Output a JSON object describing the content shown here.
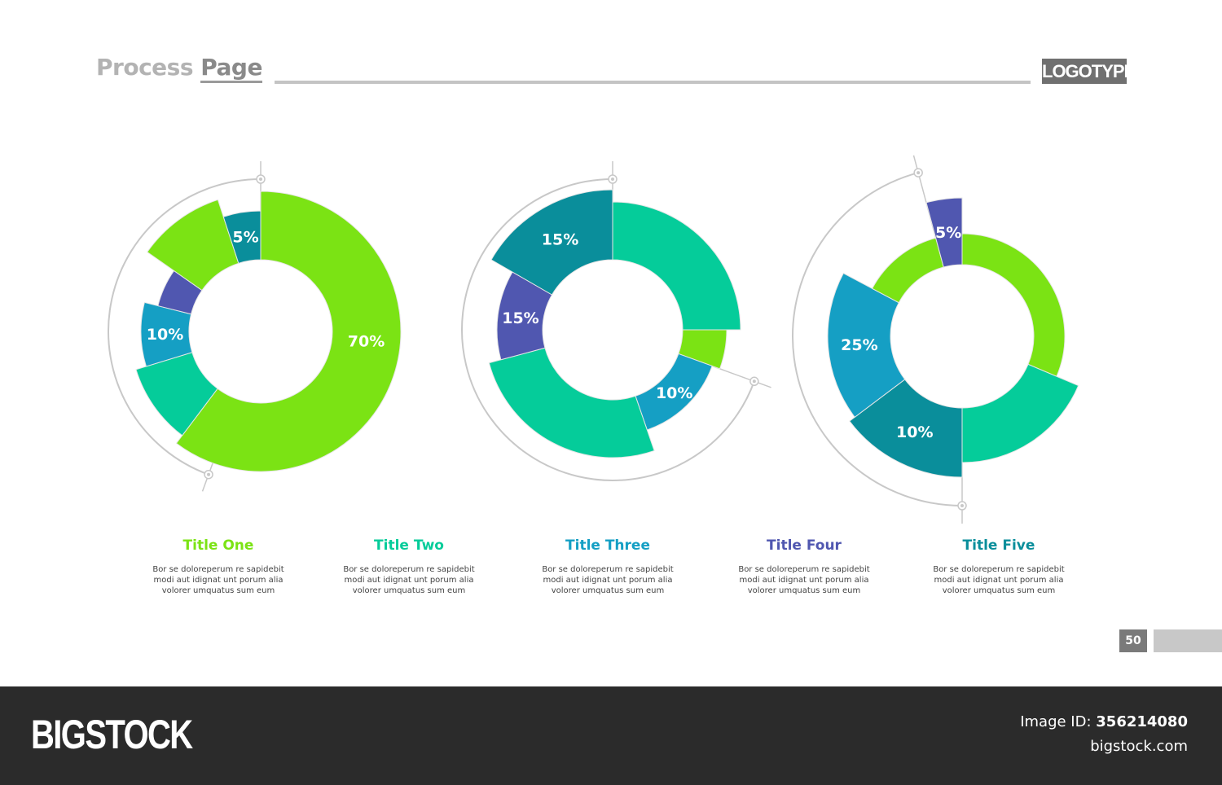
{
  "header": {
    "title_part1": "Process",
    "title_part2": "Page",
    "logo": "LOGOTYPE"
  },
  "colors": {
    "lime": "#7be314",
    "mint": "#05cc9a",
    "blue": "#159fc4",
    "teal": "#0a8e9b",
    "purple": "#5057b0",
    "guide": "#c8c8c8"
  },
  "chart_data": [
    {
      "type": "donut",
      "segments": [
        {
          "label": "70%",
          "value": 70,
          "color": "lime"
        },
        {
          "label": "",
          "value": null,
          "color": "mint"
        },
        {
          "label": "10%",
          "value": 10,
          "color": "blue"
        },
        {
          "label": "",
          "value": null,
          "color": "purple"
        },
        {
          "label": "",
          "value": null,
          "color": "lime"
        },
        {
          "label": "5%",
          "value": 5,
          "color": "teal"
        }
      ]
    },
    {
      "type": "donut",
      "segments": [
        {
          "label": "",
          "value": null,
          "color": "mint"
        },
        {
          "label": "",
          "value": null,
          "color": "lime"
        },
        {
          "label": "10%",
          "value": 10,
          "color": "blue"
        },
        {
          "label": "",
          "value": null,
          "color": "mint"
        },
        {
          "label": "15%",
          "value": 15,
          "color": "purple"
        },
        {
          "label": "15%",
          "value": 15,
          "color": "teal"
        }
      ]
    },
    {
      "type": "donut",
      "segments": [
        {
          "label": "",
          "value": null,
          "color": "lime"
        },
        {
          "label": "",
          "value": null,
          "color": "mint"
        },
        {
          "label": "10%",
          "value": 10,
          "color": "teal"
        },
        {
          "label": "25%",
          "value": 25,
          "color": "blue"
        },
        {
          "label": "",
          "value": null,
          "color": "lime"
        },
        {
          "label": "5%",
          "value": 5,
          "color": "purple"
        }
      ]
    }
  ],
  "captions": [
    {
      "title": "Title One",
      "color": "#7be314",
      "lines": [
        "Bor se doloreperum re sapidebit",
        "modi aut idignat unt porum alia",
        "volorer umquatus sum eum"
      ]
    },
    {
      "title": "Title Two",
      "color": "#05cc9a",
      "lines": [
        "Bor se doloreperum re sapidebit",
        "modi aut idignat unt porum alia",
        "volorer umquatus sum eum"
      ]
    },
    {
      "title": "Title Three",
      "color": "#159fc4",
      "lines": [
        "Bor se doloreperum re sapidebit",
        "modi aut idignat unt porum alia",
        "volorer umquatus sum eum"
      ]
    },
    {
      "title": "Title Four",
      "color": "#5057b0",
      "lines": [
        "Bor se doloreperum re sapidebit",
        "modi aut idignat unt porum alia",
        "volorer umquatus sum eum"
      ]
    },
    {
      "title": "Title Five",
      "color": "#0a8e9b",
      "lines": [
        "Bor se doloreperum re sapidebit",
        "modi aut idignat unt porum alia",
        "volorer umquatus sum eum"
      ]
    }
  ],
  "page_number": "50",
  "footer": {
    "brand": "BIGSTOCK",
    "image_id_label": "Image ID:",
    "image_id": "356214080",
    "site": "bigstock.com"
  }
}
